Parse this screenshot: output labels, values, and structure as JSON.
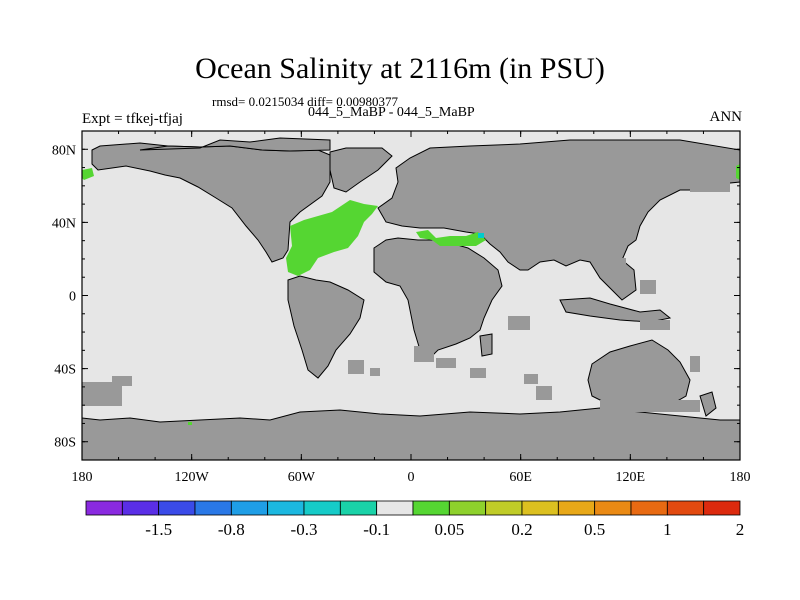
{
  "plot": {
    "title": "Ocean Salinity at 2116m (in PSU)",
    "stats": "rmsd= 0.0215034 diff= 0.00980377",
    "subtitle": "044_5_MaBP - 044_5_MaBP",
    "experiment": "Expt = tfkej-tfjaj",
    "season": "ANN"
  },
  "colors": {
    "ocean_zero": "#e6e6e6",
    "land": "#999999",
    "coast": "#000000",
    "positive_anomaly": "#55d632",
    "cyan_spot": "#00cccc"
  },
  "map": {
    "projection": "cylindrical equidistant",
    "lon_range": [
      -180,
      180
    ],
    "lat_range": [
      -90,
      90
    ],
    "lat_ticks": [
      {
        "value": 80,
        "label": "80N"
      },
      {
        "value": 40,
        "label": "40N"
      },
      {
        "value": 0,
        "label": "0"
      },
      {
        "value": -40,
        "label": "40S"
      },
      {
        "value": -80,
        "label": "80S"
      }
    ],
    "lon_ticks": [
      {
        "value": -180,
        "label": "180"
      },
      {
        "value": -120,
        "label": "120W"
      },
      {
        "value": -60,
        "label": "60W"
      },
      {
        "value": 0,
        "label": "0"
      },
      {
        "value": 60,
        "label": "60E"
      },
      {
        "value": 120,
        "label": "120E"
      },
      {
        "value": 180,
        "label": "180"
      }
    ]
  },
  "colorbar": {
    "colors": [
      "#8a2ae0",
      "#5a2ee6",
      "#3a4be8",
      "#2a78e6",
      "#1f9ee6",
      "#1cb8e0",
      "#16cbc8",
      "#1ad2a8",
      "#e6e6e6",
      "#55d632",
      "#8ed12c",
      "#c0cc28",
      "#dcc020",
      "#e8a818",
      "#ea8a14",
      "#e86a12",
      "#e24a10",
      "#dc2a0e"
    ],
    "labels": [
      "-1.5",
      "-0.8",
      "-0.3",
      "-0.1",
      "0.05",
      "0.2",
      "0.5",
      "1",
      "2"
    ]
  }
}
